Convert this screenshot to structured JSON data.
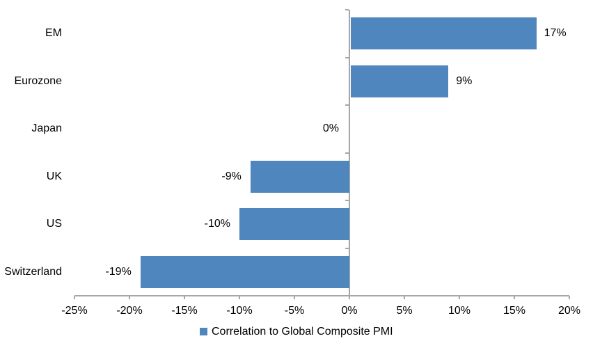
{
  "chart_data": {
    "type": "bar",
    "orientation": "horizontal",
    "title": "",
    "categories": [
      "EM",
      "Eurozone",
      "Japan",
      "UK",
      "US",
      "Switzerland"
    ],
    "values": [
      17,
      9,
      0,
      -9,
      -10,
      -19
    ],
    "value_labels": [
      "17%",
      "9%",
      "0%",
      "-9%",
      "-10%",
      "-19%"
    ],
    "x_ticks": [
      -25,
      -20,
      -15,
      -10,
      -5,
      0,
      5,
      10,
      15,
      20
    ],
    "x_tick_labels": [
      "-25%",
      "-20%",
      "-15%",
      "-10%",
      "-5%",
      "0%",
      "5%",
      "10%",
      "15%",
      "20%"
    ],
    "xlim": [
      -25,
      20
    ],
    "legend": "Correlation to Global Composite PMI",
    "legend_position": "bottom-center",
    "grid": false,
    "colors": {
      "bar": "#4e86bd",
      "axis": "#a6a6a6",
      "text": "#000000",
      "background": "#ffffff"
    }
  }
}
